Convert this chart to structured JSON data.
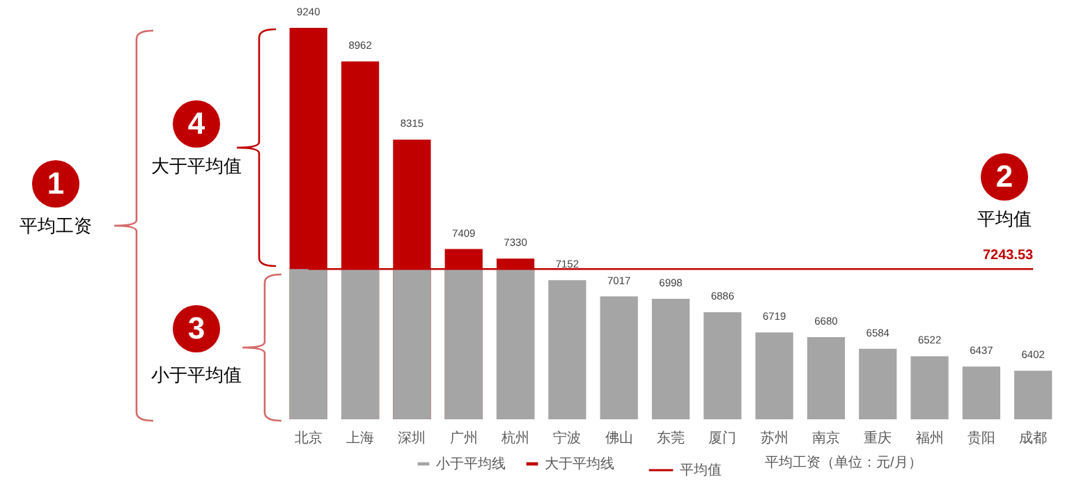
{
  "chart_data": {
    "type": "bar",
    "categories": [
      "北京",
      "上海",
      "深圳",
      "广州",
      "杭州",
      "宁波",
      "佛山",
      "东莞",
      "厦门",
      "苏州",
      "南京",
      "重庆",
      "福州",
      "贵阳",
      "成都"
    ],
    "ylim": [
      6000,
      9240
    ],
    "tick_labels": "x",
    "legend": "bottom",
    "annotations": [
      "1",
      "平均工资",
      "4",
      "大于平均值",
      "3",
      "小于平均值",
      "2",
      "平均值",
      "平均工资（单位：元/月）"
    ],
    "series": [
      {
        "name": "小于平均线",
        "color": "#a5a5a5",
        "values": [
          7243.53,
          7243.53,
          7243.53,
          7243.53,
          7243.53,
          7152,
          7017,
          6998,
          6886,
          6719,
          6680,
          6584,
          6522,
          6437,
          6402
        ],
        "value_labels": [
          null,
          null,
          null,
          null,
          null,
          "7152",
          "7017",
          "6998",
          "6886",
          "6719",
          "6680",
          "6584",
          "6522",
          "6437",
          "6402"
        ]
      },
      {
        "name": "大于平均线",
        "color": "#c00000",
        "values": [
          9240,
          8962,
          8315,
          7409,
          7330,
          null,
          null,
          null,
          null,
          null,
          null,
          null,
          null,
          null,
          null
        ],
        "value_labels": [
          "9240",
          "8962",
          "8315",
          "7409",
          "7330",
          null,
          null,
          null,
          null,
          null,
          null,
          null,
          null,
          null,
          null
        ]
      },
      {
        "name": "平均值",
        "type": "line",
        "color": "#c00000",
        "values": [
          7243.53,
          7243.53,
          7243.53,
          7243.53,
          7243.53,
          7243.53,
          7243.53,
          7243.53,
          7243.53,
          7243.53,
          7243.53,
          7243.53,
          7243.53,
          7243.53,
          7243.53
        ],
        "value_labels": [
          null,
          null,
          null,
          null,
          null,
          null,
          null,
          null,
          null,
          null,
          null,
          null,
          null,
          null,
          "7243.53"
        ]
      }
    ]
  }
}
